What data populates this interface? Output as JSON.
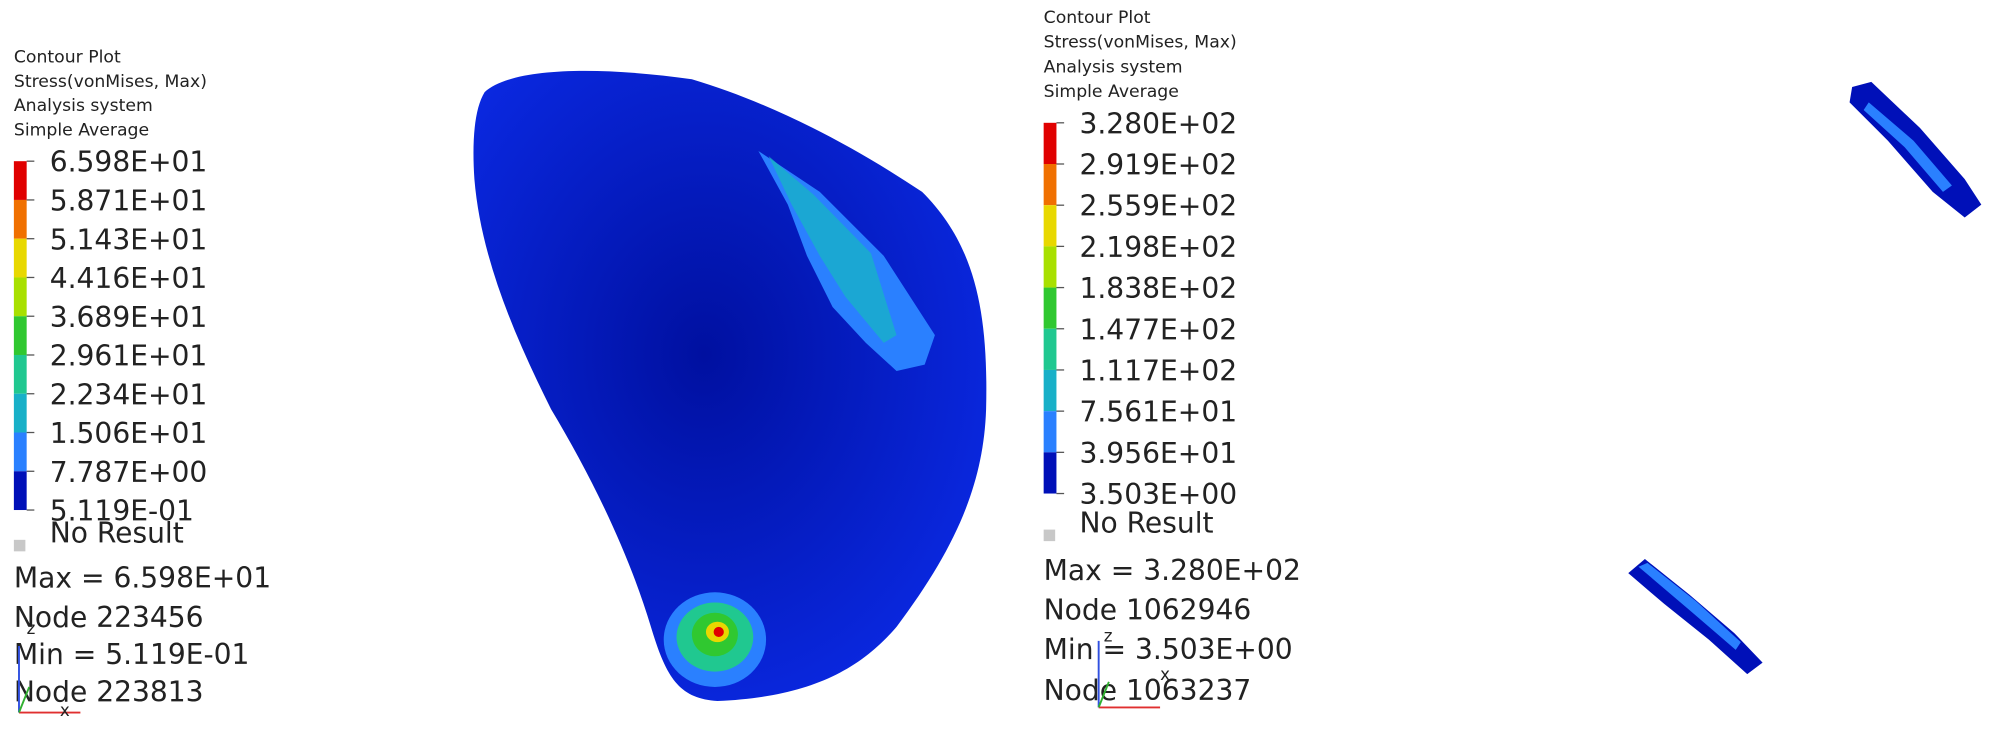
{
  "panels": [
    {
      "header": [
        "Contour Plot",
        "Stress(vonMises, Max)",
        "Analysis system",
        "Simple Average"
      ],
      "legend": {
        "labels": [
          "6.598E+01",
          "5.871E+01",
          "5.143E+01",
          "4.416E+01",
          "3.689E+01",
          "2.961E+01",
          "2.234E+01",
          "1.506E+01",
          "7.787E+00",
          "5.119E-01"
        ],
        "colors": [
          "#e00000",
          "#f07000",
          "#e8d800",
          "#a8e000",
          "#30c830",
          "#20c890",
          "#18b0c8",
          "#2a80ff",
          "#0010b8"
        ]
      },
      "no_result": "No Result",
      "stats": [
        "Max =  6.598E+01",
        "Node 223456",
        "Min =  5.119E-01",
        "Node 223813"
      ],
      "triad": [
        "z",
        "x"
      ]
    },
    {
      "header": [
        "Contour Plot",
        "Stress(vonMises, Max)",
        "Analysis system",
        "Simple Average"
      ],
      "legend": {
        "labels": [
          "3.280E+02",
          "2.919E+02",
          "2.559E+02",
          "2.198E+02",
          "1.838E+02",
          "1.477E+02",
          "1.117E+02",
          "7.561E+01",
          "3.956E+01",
          "3.503E+00"
        ],
        "colors": [
          "#e00000",
          "#f07000",
          "#e8d800",
          "#a8e000",
          "#30c830",
          "#20c890",
          "#18b0c8",
          "#2a80ff",
          "#0010b8"
        ]
      },
      "no_result": "No Result",
      "stats": [
        "Max =  3.280E+02",
        "Node 1062946",
        "Min =  3.503E+00",
        "Node 1063237"
      ],
      "triad": [
        "z",
        "x"
      ]
    }
  ]
}
